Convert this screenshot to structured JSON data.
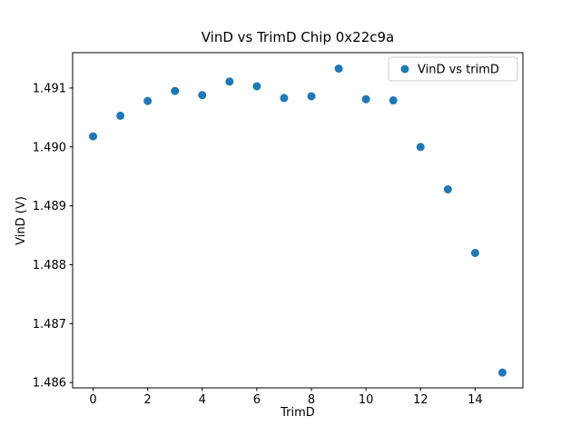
{
  "chart_data": {
    "type": "scatter",
    "title": "VinD vs TrimD Chip 0x22c9a",
    "xlabel": "TrimD",
    "ylabel": "VinD (V)",
    "legend": [
      "VinD vs trimD"
    ],
    "legend_position": "upper right",
    "marker_color": "#1f77b4",
    "x": [
      0,
      1,
      2,
      3,
      4,
      5,
      6,
      7,
      8,
      9,
      10,
      11,
      12,
      13,
      14,
      15
    ],
    "y": [
      1.49018,
      1.49053,
      1.49078,
      1.49095,
      1.49088,
      1.49111,
      1.49103,
      1.49083,
      1.49086,
      1.49133,
      1.49081,
      1.49079,
      1.49,
      1.48928,
      1.4882,
      1.48617
    ],
    "xlim": [
      -0.75,
      15.75
    ],
    "ylim": [
      1.48591,
      1.4916
    ],
    "xticks": [
      0,
      2,
      4,
      6,
      8,
      10,
      12,
      14
    ],
    "yticks": [
      1.486,
      1.487,
      1.488,
      1.489,
      1.49,
      1.491
    ],
    "grid": false
  }
}
